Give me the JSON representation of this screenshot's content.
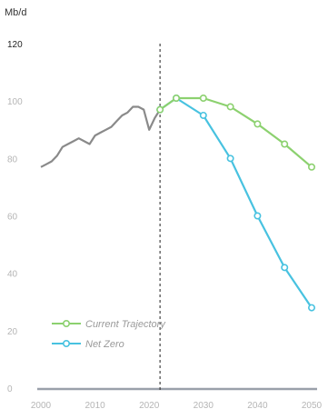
{
  "chart_data": {
    "type": "line",
    "ylabel": "Mb/d",
    "xlim": [
      2000,
      2050
    ],
    "ylim": [
      0,
      120
    ],
    "x_ticks": [
      2000,
      2010,
      2020,
      2030,
      2040,
      2050
    ],
    "y_ticks": [
      0,
      20,
      40,
      60,
      80,
      100,
      120
    ],
    "grid": false,
    "legend_position": "bottom-left",
    "divider_year": 2022,
    "history": {
      "color": "#8a8a8a",
      "x": [
        2000,
        2001,
        2002,
        2003,
        2004,
        2005,
        2006,
        2007,
        2008,
        2009,
        2010,
        2011,
        2012,
        2013,
        2014,
        2015,
        2016,
        2017,
        2018,
        2019,
        2020,
        2021,
        2022
      ],
      "y": [
        77,
        78,
        79,
        81,
        84,
        85,
        86,
        87,
        86,
        85,
        88,
        89,
        90,
        91,
        93,
        95,
        96,
        98,
        98,
        97,
        90,
        94,
        97
      ]
    },
    "series": [
      {
        "name": "Current Trajectory",
        "color": "#8cd16f",
        "x": [
          2022,
          2025,
          2030,
          2035,
          2040,
          2045,
          2050
        ],
        "y": [
          97,
          101,
          101,
          98,
          92,
          85,
          77
        ]
      },
      {
        "name": "Net Zero",
        "color": "#48c2e0",
        "x": [
          2022,
          2025,
          2030,
          2035,
          2040,
          2045,
          2050
        ],
        "y": [
          97,
          101,
          95,
          80,
          60,
          42,
          28
        ]
      }
    ]
  }
}
